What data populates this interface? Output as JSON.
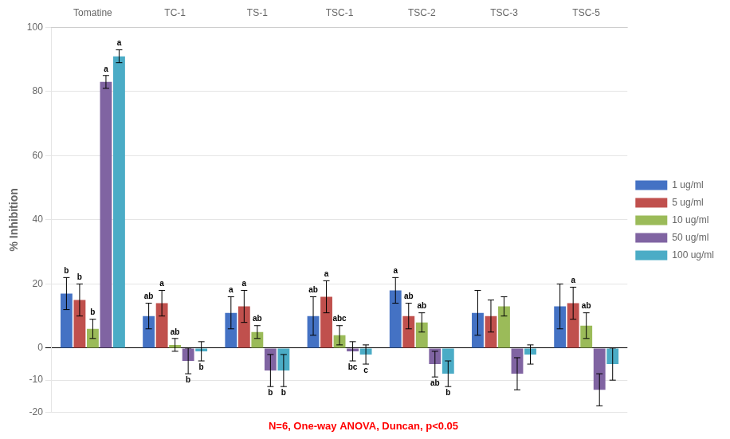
{
  "chart_data": {
    "type": "bar",
    "categories": [
      "Tomatine",
      "TC-1",
      "TS-1",
      "TSC-1",
      "TSC-2",
      "TSC-3",
      "TSC-5"
    ],
    "series": [
      {
        "name": "1 ug/ml",
        "color": "#4472C4",
        "values": [
          17,
          10,
          11,
          10,
          18,
          11,
          13
        ],
        "errors": [
          5,
          4,
          5,
          6,
          4,
          7,
          7
        ],
        "annotations": [
          "b",
          "ab",
          "a",
          "ab",
          "a",
          null,
          null
        ]
      },
      {
        "name": "5 ug/ml",
        "color": "#C0504D",
        "values": [
          15,
          14,
          13,
          16,
          10,
          10,
          14
        ],
        "errors": [
          5,
          4,
          5,
          5,
          4,
          5,
          5
        ],
        "annotations": [
          "b",
          "a",
          "a",
          "a",
          "ab",
          null,
          "a"
        ]
      },
      {
        "name": "10 ug/ml",
        "color": "#9BBB59",
        "values": [
          6,
          1,
          5,
          4,
          8,
          13,
          7
        ],
        "errors": [
          3,
          2,
          2,
          3,
          3,
          3,
          4
        ],
        "annotations": [
          "b",
          "ab",
          "ab",
          "abc",
          "ab",
          null,
          "ab"
        ]
      },
      {
        "name": "50 ug/ml",
        "color": "#8064A2",
        "values": [
          83,
          -4,
          -7,
          -1,
          -5,
          -8,
          -13
        ],
        "errors": [
          2,
          4,
          5,
          3,
          4,
          5,
          5
        ],
        "annotations": [
          "a",
          "b",
          "b",
          "bc",
          "ab",
          null,
          null
        ]
      },
      {
        "name": "100 ug/ml",
        "color": "#4BACC6",
        "values": [
          91,
          -1,
          -7,
          -2,
          -8,
          -2,
          -5
        ],
        "errors": [
          2,
          3,
          5,
          3,
          4,
          3,
          5
        ],
        "annotations": [
          "a",
          "b",
          "b",
          "c",
          "b",
          null,
          null
        ]
      }
    ],
    "ylabel": "% Inhibition",
    "ylim": [
      -20,
      100
    ],
    "yticks": [
      -20,
      -10,
      0,
      20,
      40,
      60,
      80,
      100
    ],
    "annotation": "N=6, One-way ANOVA, Duncan, p<0.05",
    "grid": true,
    "legend": "right"
  }
}
